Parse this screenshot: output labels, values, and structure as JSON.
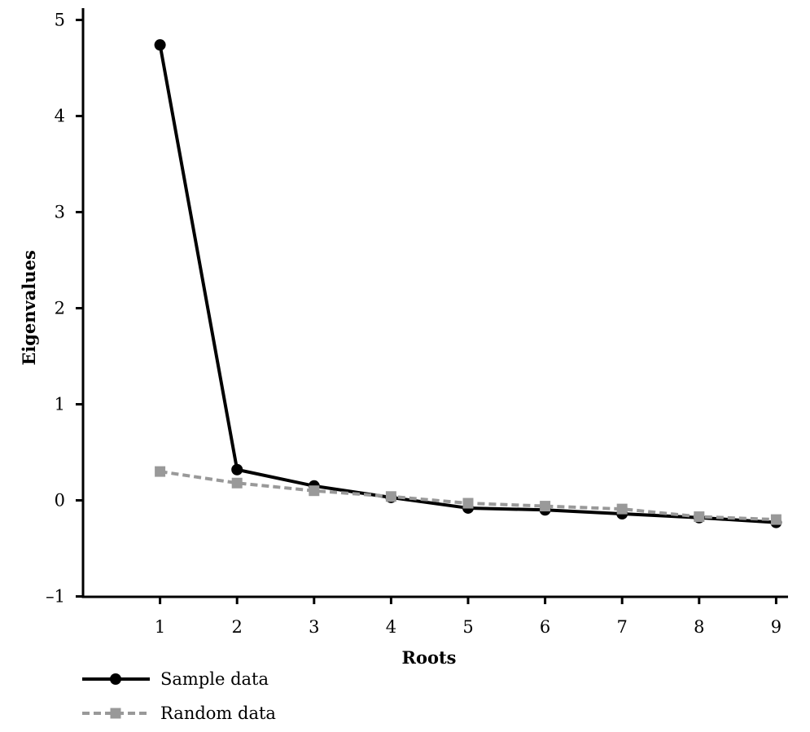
{
  "chart_data": {
    "type": "line",
    "title": "",
    "xlabel": "Roots",
    "ylabel": "Eigenvalues",
    "x": [
      1,
      2,
      3,
      4,
      5,
      6,
      7,
      8,
      9
    ],
    "xlim": [
      0,
      9
    ],
    "ylim": [
      -1,
      5
    ],
    "x_ticks": [
      "1",
      "2",
      "3",
      "4",
      "5",
      "6",
      "7",
      "8",
      "9"
    ],
    "y_ticks": [
      "–1",
      "0",
      "1",
      "2",
      "3",
      "4",
      "5"
    ],
    "y_tick_values": [
      -1,
      0,
      1,
      2,
      3,
      4,
      5
    ],
    "grid": false,
    "legend_position": "bottom-left",
    "series": [
      {
        "name": "Sample data",
        "values": [
          4.74,
          0.32,
          0.15,
          0.03,
          -0.08,
          -0.1,
          -0.14,
          -0.18,
          -0.23
        ],
        "color": "#000000",
        "marker": "circle",
        "dash": "solid"
      },
      {
        "name": "Random data",
        "values": [
          0.3,
          0.18,
          0.1,
          0.04,
          -0.03,
          -0.06,
          -0.09,
          -0.17,
          -0.2
        ],
        "color": "#999999",
        "marker": "square",
        "dash": "dashed"
      }
    ]
  }
}
